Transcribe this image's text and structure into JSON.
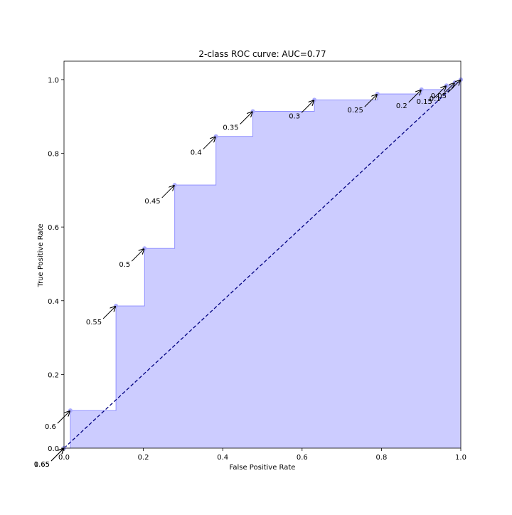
{
  "chart_data": {
    "type": "area",
    "title": "2-class ROC curve: AUC=0.77",
    "xlabel": "False Positive Rate",
    "ylabel": "True Positive Rate",
    "xlim": [
      0.0,
      1.0
    ],
    "ylim": [
      0.0,
      1.05
    ],
    "xticks": [
      "0.0",
      "0.2",
      "0.4",
      "0.6",
      "0.8",
      "1.0"
    ],
    "yticks": [
      "0.0",
      "0.2",
      "0.4",
      "0.6",
      "0.8",
      "1.0"
    ],
    "grid": false,
    "fill_color": "#ccccff",
    "line_color": "#8888ff",
    "point_color": "#aaaaff",
    "diagonal_color": "#000080",
    "roc_points": [
      {
        "fpr": 0.0,
        "tpr": 0.0,
        "threshold": "0.65"
      },
      {
        "fpr": 0.0,
        "tpr": 0.0,
        "threshold": "1.65"
      },
      {
        "fpr": 0.016,
        "tpr": 0.102,
        "threshold": "0.6"
      },
      {
        "fpr": 0.131,
        "tpr": 0.386,
        "threshold": "0.55"
      },
      {
        "fpr": 0.203,
        "tpr": 0.542,
        "threshold": "0.5"
      },
      {
        "fpr": 0.279,
        "tpr": 0.714,
        "threshold": "0.45"
      },
      {
        "fpr": 0.383,
        "tpr": 0.846,
        "threshold": "0.4"
      },
      {
        "fpr": 0.476,
        "tpr": 0.914,
        "threshold": "0.35"
      },
      {
        "fpr": 0.631,
        "tpr": 0.945,
        "threshold": "0.3"
      },
      {
        "fpr": 0.79,
        "tpr": 0.961,
        "threshold": "0.25"
      },
      {
        "fpr": 0.901,
        "tpr": 0.973,
        "threshold": "0.2"
      },
      {
        "fpr": 0.964,
        "tpr": 0.984,
        "threshold": "0.15"
      },
      {
        "fpr": 0.985,
        "tpr": 0.992,
        "threshold": "0.1"
      },
      {
        "fpr": 1.0,
        "tpr": 1.0,
        "threshold": "0.05"
      }
    ]
  }
}
